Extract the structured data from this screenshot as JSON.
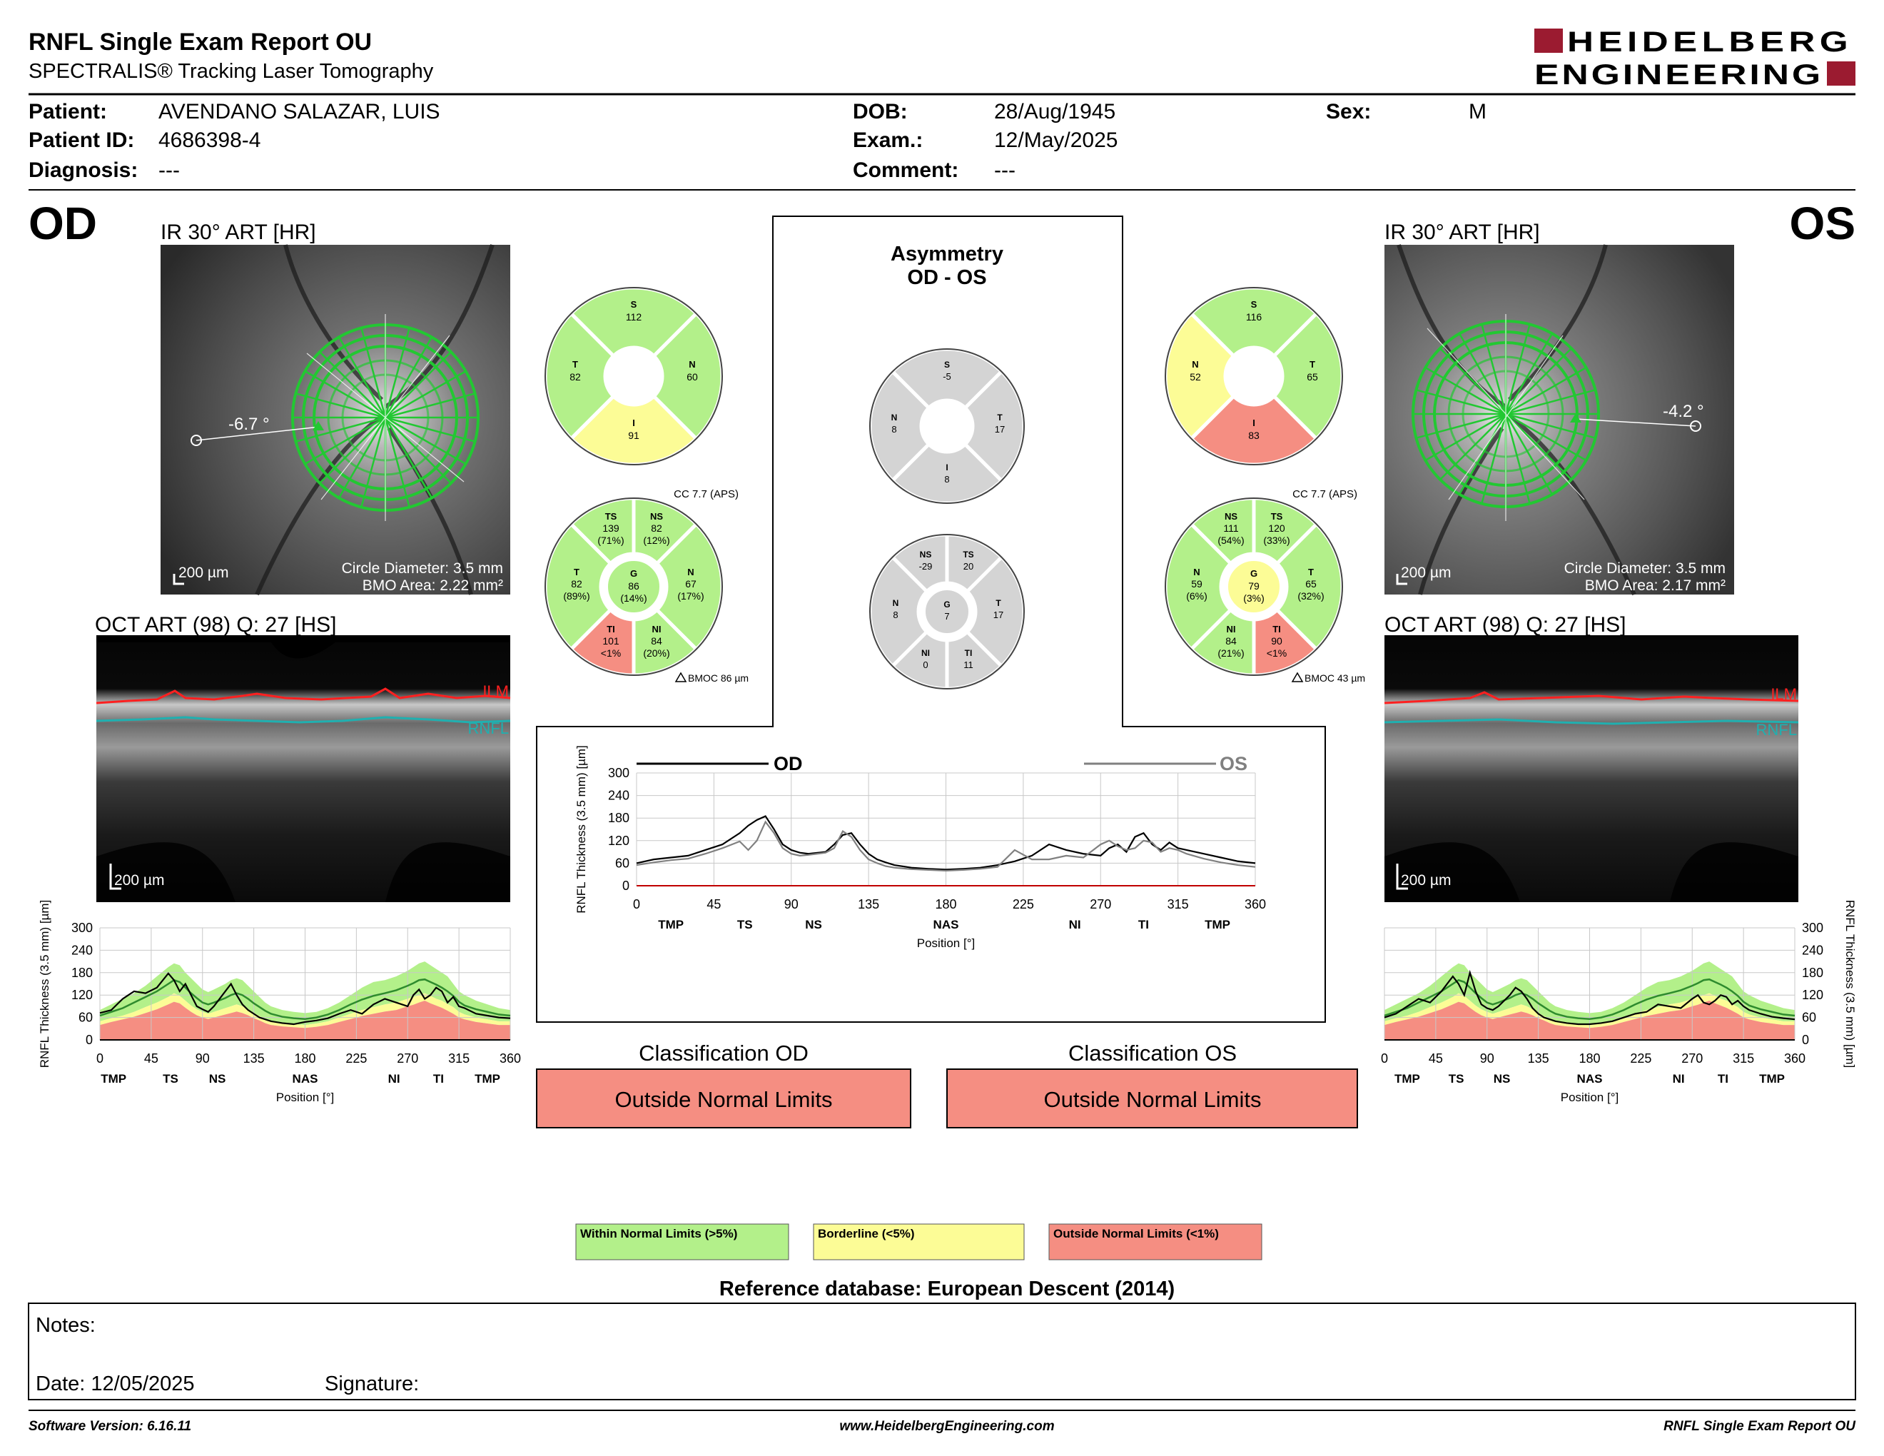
{
  "report": {
    "title": "RNFL Single Exam Report OU",
    "subtitle": "SPECTRALIS® Tracking Laser Tomography",
    "logo_line1": "HEIDELBERG",
    "logo_line2": "ENGINEERING"
  },
  "patient": {
    "patient_label": "Patient:",
    "patient_value": "AVENDANO SALAZAR, LUIS",
    "id_label": "Patient ID:",
    "id_value": "4686398-4",
    "diagnosis_label": "Diagnosis:",
    "diagnosis_value": "---",
    "dob_label": "DOB:",
    "dob_value": "28/Aug/1945",
    "exam_label": "Exam.:",
    "exam_value": "12/May/2025",
    "comment_label": "Comment:",
    "comment_value": "---",
    "sex_label": "Sex:",
    "sex_value": "M"
  },
  "colors": {
    "normal": "#b3f08a",
    "borderline": "#fcfc96",
    "outside": "#f58e82",
    "gray": "#d4d4d4",
    "od_line": "#000000",
    "os_line": "#808080",
    "laser_green": "#22c832",
    "ilm": "#ff2020",
    "rnfl": "#20b0b0",
    "brand": "#9b1b30"
  },
  "od": {
    "eye": "OD",
    "ir_title": "IR 30° ART [HR]",
    "angle": "-6.7 °",
    "scale": "200 µm",
    "circle_diameter": "Circle Diameter: 3.5 mm",
    "bmo_area": "BMO Area: 2.22 mm²",
    "oct_title": "OCT ART (98) Q: 27 [HS]",
    "oct_scale": "200 µm",
    "ilm": "ILM",
    "rnfl": "RNFL",
    "quadrants": {
      "S": "112",
      "N": "60",
      "I": "91",
      "T": "82"
    },
    "quadrant_status": {
      "S": "normal",
      "N": "normal",
      "I": "borderline",
      "T": "normal"
    },
    "cc": "CC 7.7 (APS)",
    "bmoc": "BMOC 86 µm",
    "sectors": {
      "TS": {
        "value": "139",
        "pct": "(71%)",
        "status": "normal"
      },
      "NS": {
        "value": "82",
        "pct": "(12%)",
        "status": "normal"
      },
      "N": {
        "value": "67",
        "pct": "(17%)",
        "status": "normal"
      },
      "NI": {
        "value": "84",
        "pct": "(20%)",
        "status": "normal"
      },
      "TI": {
        "value": "101",
        "pct": "<1%",
        "status": "outside"
      },
      "T": {
        "value": "82",
        "pct": "(89%)",
        "status": "normal"
      },
      "G": {
        "value": "86",
        "pct": "(14%)",
        "status": "normal"
      }
    },
    "classification_title": "Classification OD",
    "classification": "Outside Normal Limits"
  },
  "os": {
    "eye": "OS",
    "ir_title": "IR 30° ART [HR]",
    "angle": "-4.2 °",
    "scale": "200 µm",
    "circle_diameter": "Circle Diameter: 3.5 mm",
    "bmo_area": "BMO Area: 2.17 mm²",
    "oct_title": "OCT ART (98) Q: 27 [HS]",
    "oct_scale": "200 µm",
    "ilm": "ILM",
    "rnfl": "RNFL",
    "quadrants": {
      "S": "116",
      "N": "52",
      "I": "83",
      "T": "65"
    },
    "quadrant_status": {
      "S": "normal",
      "N": "borderline",
      "I": "outside",
      "T": "normal"
    },
    "cc": "CC 7.7 (APS)",
    "bmoc": "BMOC 43 µm",
    "sectors": {
      "NS": {
        "value": "111",
        "pct": "(54%)",
        "status": "normal"
      },
      "TS": {
        "value": "120",
        "pct": "(33%)",
        "status": "normal"
      },
      "T": {
        "value": "65",
        "pct": "(32%)",
        "status": "normal"
      },
      "TI": {
        "value": "90",
        "pct": "<1%",
        "status": "outside"
      },
      "NI": {
        "value": "84",
        "pct": "(21%)",
        "status": "normal"
      },
      "N": {
        "value": "59",
        "pct": "(6%)",
        "status": "normal"
      },
      "G": {
        "value": "79",
        "pct": "(3%)",
        "status": "borderline"
      }
    },
    "classification_title": "Classification OS",
    "classification": "Outside Normal Limits"
  },
  "asymmetry": {
    "title_line1": "Asymmetry",
    "title_line2": "OD - OS",
    "quadrants": {
      "S": "-5",
      "T": "17",
      "I": "8",
      "N": "8"
    },
    "sectors": {
      "NS": "-29",
      "TS": "20",
      "T": "17",
      "TI": "11",
      "NI": "0",
      "N": "8",
      "G": "7"
    }
  },
  "legend": {
    "normal": "Within Normal Limits (>5%)",
    "borderline": "Borderline (<5%)",
    "outside": "Outside Normal Limits (<1%)",
    "reference": "Reference database: European Descent (2014)"
  },
  "notes": {
    "notes_label": "Notes:",
    "date_label": "Date: 12/05/2025",
    "signature_label": "Signature:"
  },
  "footer": {
    "software": "Software Version: 6.16.11",
    "website": "www.HeidelbergEngineering.com",
    "report_name": "RNFL Single Exam Report OU"
  },
  "chart_data": [
    {
      "type": "line",
      "id": "od-thickness-profile",
      "ylabel": "RNFL Thickness (3.5 mm) [µm]",
      "xlabel": "Position [°]",
      "xlim": [
        0,
        360
      ],
      "ylim": [
        0,
        300
      ],
      "x_ticks": [
        0,
        45,
        90,
        135,
        180,
        225,
        270,
        315,
        360
      ],
      "y_ticks": [
        0,
        60,
        120,
        180,
        240,
        300
      ],
      "sector_labels": [
        {
          "label": "TMP",
          "x": 12
        },
        {
          "label": "TS",
          "x": 62
        },
        {
          "label": "NS",
          "x": 103
        },
        {
          "label": "NAS",
          "x": 180
        },
        {
          "label": "NI",
          "x": 258
        },
        {
          "label": "TI",
          "x": 297
        },
        {
          "label": "TMP",
          "x": 340
        }
      ],
      "x": [
        0,
        10,
        20,
        30,
        40,
        50,
        60,
        65,
        70,
        75,
        80,
        85,
        90,
        95,
        100,
        110,
        115,
        120,
        125,
        130,
        135,
        140,
        145,
        150,
        160,
        170,
        180,
        190,
        200,
        210,
        220,
        230,
        240,
        250,
        260,
        270,
        275,
        280,
        285,
        290,
        295,
        300,
        305,
        310,
        315,
        320,
        330,
        340,
        350,
        360
      ],
      "normal_upper": [
        80,
        95,
        110,
        125,
        145,
        170,
        195,
        205,
        200,
        180,
        165,
        150,
        135,
        128,
        135,
        150,
        160,
        165,
        160,
        145,
        130,
        115,
        100,
        90,
        80,
        75,
        72,
        75,
        85,
        100,
        120,
        140,
        155,
        160,
        170,
        185,
        195,
        205,
        210,
        200,
        190,
        180,
        170,
        150,
        130,
        120,
        105,
        95,
        85,
        80
      ],
      "normal_median": [
        65,
        75,
        85,
        100,
        115,
        130,
        150,
        160,
        155,
        140,
        125,
        112,
        100,
        95,
        100,
        112,
        120,
        125,
        120,
        110,
        98,
        88,
        78,
        70,
        62,
        58,
        56,
        60,
        68,
        80,
        95,
        108,
        118,
        125,
        133,
        145,
        152,
        160,
        162,
        155,
        148,
        140,
        130,
        118,
        102,
        92,
        82,
        75,
        68,
        65
      ],
      "borderline_lower": [
        50,
        58,
        65,
        75,
        88,
        100,
        115,
        125,
        118,
        105,
        92,
        82,
        75,
        70,
        75,
        85,
        90,
        95,
        90,
        82,
        72,
        64,
        56,
        50,
        45,
        42,
        40,
        44,
        50,
        60,
        70,
        80,
        88,
        95,
        100,
        110,
        115,
        120,
        125,
        118,
        110,
        105,
        96,
        88,
        75,
        68,
        60,
        55,
        50,
        50
      ],
      "outside_upper": [
        40,
        48,
        55,
        62,
        72,
        82,
        95,
        102,
        98,
        86,
        75,
        66,
        60,
        56,
        60,
        68,
        72,
        76,
        72,
        66,
        58,
        52,
        45,
        40,
        36,
        34,
        32,
        35,
        40,
        48,
        56,
        64,
        70,
        76,
        80,
        90,
        94,
        100,
        105,
        98,
        92,
        86,
        78,
        70,
        60,
        55,
        48,
        44,
        40,
        40
      ],
      "series": [
        {
          "name": "OD",
          "values": [
            72,
            80,
            110,
            130,
            125,
            140,
            178,
            160,
            130,
            150,
            120,
            90,
            82,
            75,
            90,
            130,
            150,
            120,
            95,
            80,
            70,
            60,
            55,
            50,
            45,
            42,
            48,
            52,
            58,
            70,
            80,
            70,
            95,
            110,
            100,
            90,
            120,
            135,
            110,
            120,
            140,
            130,
            100,
            115,
            90,
            85,
            70,
            65,
            60,
            58
          ]
        }
      ]
    },
    {
      "type": "line",
      "id": "ou-comparison",
      "ylabel": "RNFL Thickness (3.5 mm) [µm]",
      "xlabel": "Position [°]",
      "xlim": [
        0,
        360
      ],
      "ylim": [
        0,
        300
      ],
      "x_ticks": [
        0,
        45,
        90,
        135,
        180,
        225,
        270,
        315,
        360
      ],
      "y_ticks": [
        0,
        60,
        120,
        180,
        240,
        300
      ],
      "sector_labels": [
        {
          "label": "TMP",
          "x": 20
        },
        {
          "label": "TS",
          "x": 63
        },
        {
          "label": "NS",
          "x": 103
        },
        {
          "label": "NAS",
          "x": 180
        },
        {
          "label": "NI",
          "x": 255
        },
        {
          "label": "TI",
          "x": 295
        },
        {
          "label": "TMP",
          "x": 338
        }
      ],
      "x": [
        0,
        10,
        20,
        30,
        40,
        50,
        60,
        65,
        70,
        75,
        80,
        85,
        90,
        95,
        100,
        110,
        115,
        120,
        125,
        130,
        135,
        140,
        145,
        150,
        160,
        170,
        180,
        190,
        200,
        210,
        220,
        230,
        240,
        250,
        260,
        270,
        275,
        280,
        285,
        290,
        295,
        300,
        305,
        310,
        315,
        320,
        330,
        340,
        350,
        360
      ],
      "series": [
        {
          "name": "OD",
          "values": [
            60,
            70,
            75,
            80,
            95,
            110,
            140,
            160,
            175,
            185,
            150,
            110,
            95,
            88,
            85,
            90,
            110,
            135,
            140,
            110,
            85,
            70,
            62,
            55,
            48,
            45,
            43,
            45,
            48,
            55,
            65,
            80,
            110,
            95,
            85,
            80,
            100,
            110,
            90,
            130,
            140,
            110,
            95,
            115,
            100,
            95,
            85,
            75,
            65,
            60
          ]
        },
        {
          "name": "OS",
          "values": [
            55,
            62,
            68,
            72,
            85,
            100,
            118,
            95,
            120,
            170,
            140,
            100,
            85,
            80,
            82,
            88,
            100,
            145,
            130,
            95,
            70,
            60,
            52,
            48,
            44,
            42,
            40,
            42,
            45,
            50,
            95,
            70,
            70,
            80,
            75,
            110,
            120,
            105,
            95,
            100,
            120,
            115,
            90,
            100,
            95,
            85,
            72,
            62,
            55,
            50
          ]
        }
      ]
    },
    {
      "type": "line",
      "id": "os-thickness-profile",
      "ylabel": "RNFL Thickness (3.5 mm) [µm]",
      "xlabel": "Position [°]",
      "xlim": [
        0,
        360
      ],
      "ylim": [
        0,
        300
      ],
      "x_ticks": [
        0,
        45,
        90,
        135,
        180,
        225,
        270,
        315,
        360
      ],
      "y_ticks": [
        0,
        60,
        120,
        180,
        240,
        300
      ],
      "sector_labels": [
        {
          "label": "TMP",
          "x": 20
        },
        {
          "label": "TS",
          "x": 63
        },
        {
          "label": "NS",
          "x": 103
        },
        {
          "label": "NAS",
          "x": 180
        },
        {
          "label": "NI",
          "x": 258
        },
        {
          "label": "TI",
          "x": 297
        },
        {
          "label": "TMP",
          "x": 340
        }
      ],
      "x": [
        0,
        10,
        20,
        30,
        40,
        50,
        60,
        65,
        70,
        75,
        80,
        85,
        90,
        95,
        100,
        110,
        115,
        120,
        125,
        130,
        135,
        140,
        145,
        150,
        160,
        170,
        180,
        190,
        200,
        210,
        220,
        230,
        240,
        250,
        260,
        270,
        275,
        280,
        285,
        290,
        295,
        300,
        305,
        310,
        315,
        320,
        330,
        340,
        350,
        360
      ],
      "normal_upper": [
        80,
        95,
        110,
        125,
        145,
        170,
        195,
        205,
        200,
        180,
        165,
        150,
        135,
        128,
        135,
        150,
        160,
        165,
        160,
        145,
        130,
        115,
        100,
        90,
        80,
        75,
        72,
        75,
        85,
        100,
        120,
        140,
        155,
        160,
        170,
        185,
        195,
        205,
        210,
        200,
        190,
        180,
        170,
        150,
        130,
        120,
        105,
        95,
        85,
        80
      ],
      "normal_median": [
        65,
        75,
        85,
        100,
        115,
        130,
        150,
        160,
        155,
        140,
        125,
        112,
        100,
        95,
        100,
        112,
        120,
        125,
        120,
        110,
        98,
        88,
        78,
        70,
        62,
        58,
        56,
        60,
        68,
        80,
        95,
        108,
        118,
        125,
        133,
        145,
        152,
        160,
        162,
        155,
        148,
        140,
        130,
        118,
        102,
        92,
        82,
        75,
        68,
        65
      ],
      "borderline_lower": [
        50,
        58,
        65,
        75,
        88,
        100,
        115,
        125,
        118,
        105,
        92,
        82,
        75,
        70,
        75,
        85,
        90,
        95,
        90,
        82,
        72,
        64,
        56,
        50,
        45,
        42,
        40,
        44,
        50,
        60,
        70,
        80,
        88,
        95,
        100,
        110,
        115,
        120,
        125,
        118,
        110,
        105,
        96,
        88,
        75,
        68,
        60,
        55,
        50,
        50
      ],
      "outside_upper": [
        40,
        48,
        55,
        62,
        72,
        82,
        95,
        102,
        98,
        86,
        75,
        66,
        60,
        56,
        60,
        68,
        72,
        76,
        72,
        66,
        58,
        52,
        45,
        40,
        36,
        34,
        32,
        35,
        40,
        48,
        56,
        64,
        70,
        76,
        80,
        90,
        94,
        100,
        105,
        98,
        92,
        86,
        78,
        70,
        60,
        55,
        48,
        44,
        40,
        40
      ],
      "series": [
        {
          "name": "OS",
          "values": [
            60,
            70,
            90,
            110,
            100,
            130,
            170,
            150,
            120,
            180,
            130,
            95,
            85,
            80,
            90,
            120,
            140,
            130,
            110,
            85,
            70,
            60,
            55,
            50,
            45,
            42,
            42,
            45,
            50,
            60,
            70,
            75,
            95,
            90,
            85,
            110,
            120,
            100,
            95,
            105,
            120,
            115,
            95,
            105,
            90,
            80,
            70,
            62,
            58,
            55
          ]
        }
      ]
    }
  ]
}
